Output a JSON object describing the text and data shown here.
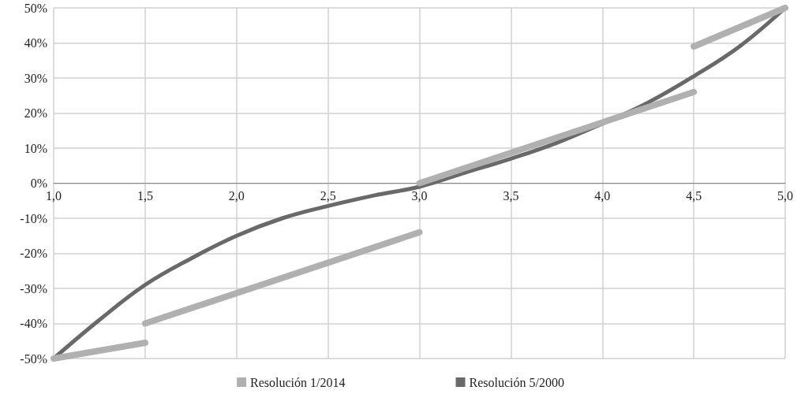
{
  "chart_data": {
    "type": "line",
    "xlim": [
      1,
      5
    ],
    "xticks": [
      {
        "value": 1,
        "label": "1,0"
      },
      {
        "value": 1.5,
        "label": "1,5"
      },
      {
        "value": 2,
        "label": "2,0"
      },
      {
        "value": 2.5,
        "label": "2,5"
      },
      {
        "value": 3,
        "label": "3,0"
      },
      {
        "value": 3.5,
        "label": "3,5"
      },
      {
        "value": 4,
        "label": "4,0"
      },
      {
        "value": 4.5,
        "label": "4,5"
      },
      {
        "value": 5,
        "label": "5,0"
      }
    ],
    "ylim": [
      -50,
      50
    ],
    "yticks": [
      {
        "value": -50,
        "label": "-50%"
      },
      {
        "value": -40,
        "label": "-40%"
      },
      {
        "value": -30,
        "label": "-30%"
      },
      {
        "value": -20,
        "label": "-20%"
      },
      {
        "value": -10,
        "label": "-10%"
      },
      {
        "value": 0,
        "label": "0%"
      },
      {
        "value": 10,
        "label": "10%"
      },
      {
        "value": 20,
        "label": "20%"
      },
      {
        "value": 30,
        "label": "30%"
      },
      {
        "value": 40,
        "label": "40%"
      },
      {
        "value": 50,
        "label": "50%"
      }
    ],
    "grid": true,
    "legend": "bottom",
    "marker": "none",
    "line_style": "solid",
    "series": [
      {
        "name": "Resolución 1/2014",
        "color": "#b0b0b0",
        "x": [
          1,
          1.5
        ],
        "values": [
          -50,
          -45.5
        ]
      },
      {
        "color": "#b0b0b0",
        "x": [
          1.5,
          3
        ],
        "values": [
          -40,
          -14
        ]
      },
      {
        "color": "#b0b0b0",
        "x": [
          3,
          4.5
        ],
        "values": [
          0,
          26
        ]
      },
      {
        "color": "#b0b0b0",
        "x": [
          4.5,
          5
        ],
        "values": [
          39,
          50
        ]
      },
      {
        "name": "Resolución 5/2000",
        "color": "#696969",
        "x": [
          1,
          1.25,
          1.5,
          1.75,
          2,
          2.25,
          2.5,
          2.75,
          3,
          3.25,
          3.5,
          3.75,
          4,
          4.25,
          4.5,
          4.75,
          5
        ],
        "values": [
          -50,
          -39,
          -29,
          -21.5,
          -15,
          -10,
          -6.5,
          -3.5,
          -1,
          3,
          7,
          11.5,
          17,
          23,
          30.5,
          39,
          50
        ]
      }
    ]
  }
}
